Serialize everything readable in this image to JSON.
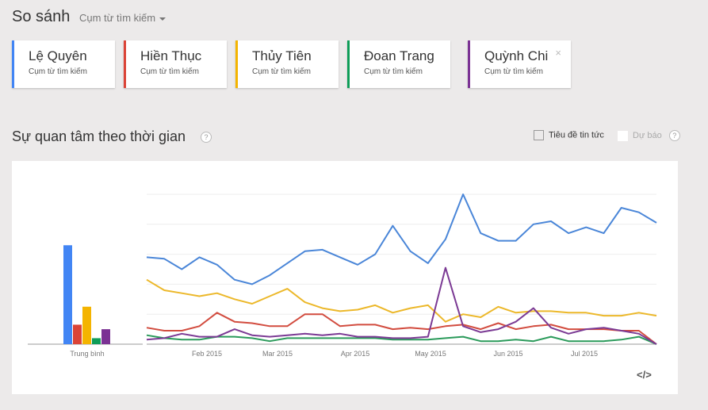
{
  "header": {
    "title": "So sánh",
    "mode": "Cụm từ tìm kiếm"
  },
  "terms": [
    {
      "name": "Lệ Quyên",
      "type": "Cụm từ tìm kiếm",
      "color": "#4285f4"
    },
    {
      "name": "Hiền Thục",
      "type": "Cụm từ tìm kiếm",
      "color": "#db4437"
    },
    {
      "name": "Thủy Tiên",
      "type": "Cụm từ tìm kiếm",
      "color": "#f4b400"
    },
    {
      "name": "Đoan Trang",
      "type": "Cụm từ tìm kiếm",
      "color": "#0f9d58"
    },
    {
      "name": "Quỳnh Chi",
      "type": "Cụm từ tìm kiếm",
      "color": "#7b3294",
      "close": "×"
    }
  ],
  "section": {
    "title": "Sự quan tâm theo thời gian",
    "help": "?",
    "news_label": "Tiêu đề tin tức",
    "forecast_label": "Dự báo",
    "forecast_help": "?",
    "embed": "</>"
  },
  "chart_data": {
    "type": "line",
    "title": "Sự quan tâm theo thời gian",
    "ylim": [
      0,
      100
    ],
    "x_tick_labels": [
      "Feb 2015",
      "Mar 2015",
      "Apr 2015",
      "May 2015",
      "Jun 2015",
      "Jul 2015"
    ],
    "average_label": "Trung bình",
    "averages": [
      66,
      13,
      25,
      4,
      10
    ],
    "series": [
      {
        "name": "Lệ Quyên",
        "color": "#4a86d8",
        "values": [
          58,
          57,
          50,
          58,
          53,
          43,
          40,
          46,
          54,
          62,
          63,
          58,
          53,
          60,
          79,
          62,
          54,
          70,
          100,
          74,
          69,
          69,
          80,
          82,
          74,
          78,
          74,
          91,
          88,
          81
        ]
      },
      {
        "name": "Hiền Thục",
        "color": "#d24c3f",
        "values": [
          11,
          9,
          9,
          12,
          21,
          15,
          14,
          12,
          12,
          20,
          20,
          12,
          13,
          13,
          10,
          11,
          10,
          12,
          13,
          10,
          14,
          10,
          12,
          13,
          10,
          10,
          10,
          9,
          9,
          0
        ]
      },
      {
        "name": "Thủy Tiên",
        "color": "#ecb82a",
        "values": [
          43,
          36,
          34,
          32,
          34,
          30,
          27,
          32,
          37,
          28,
          24,
          22,
          23,
          26,
          21,
          24,
          26,
          15,
          20,
          18,
          25,
          21,
          22,
          22,
          21,
          21,
          19,
          19,
          21,
          19
        ]
      },
      {
        "name": "Đoan Trang",
        "color": "#2a9a5a",
        "values": [
          6,
          4,
          3,
          3,
          5,
          5,
          4,
          2,
          4,
          4,
          4,
          4,
          4,
          4,
          3,
          3,
          3,
          4,
          5,
          2,
          2,
          3,
          2,
          5,
          2,
          2,
          2,
          3,
          5,
          0
        ]
      },
      {
        "name": "Quỳnh Chi",
        "color": "#7b3a94",
        "values": [
          3,
          4,
          7,
          5,
          5,
          10,
          6,
          5,
          6,
          7,
          6,
          7,
          5,
          5,
          4,
          4,
          5,
          51,
          12,
          8,
          10,
          15,
          24,
          11,
          7,
          10,
          11,
          9,
          7,
          0
        ]
      }
    ]
  }
}
